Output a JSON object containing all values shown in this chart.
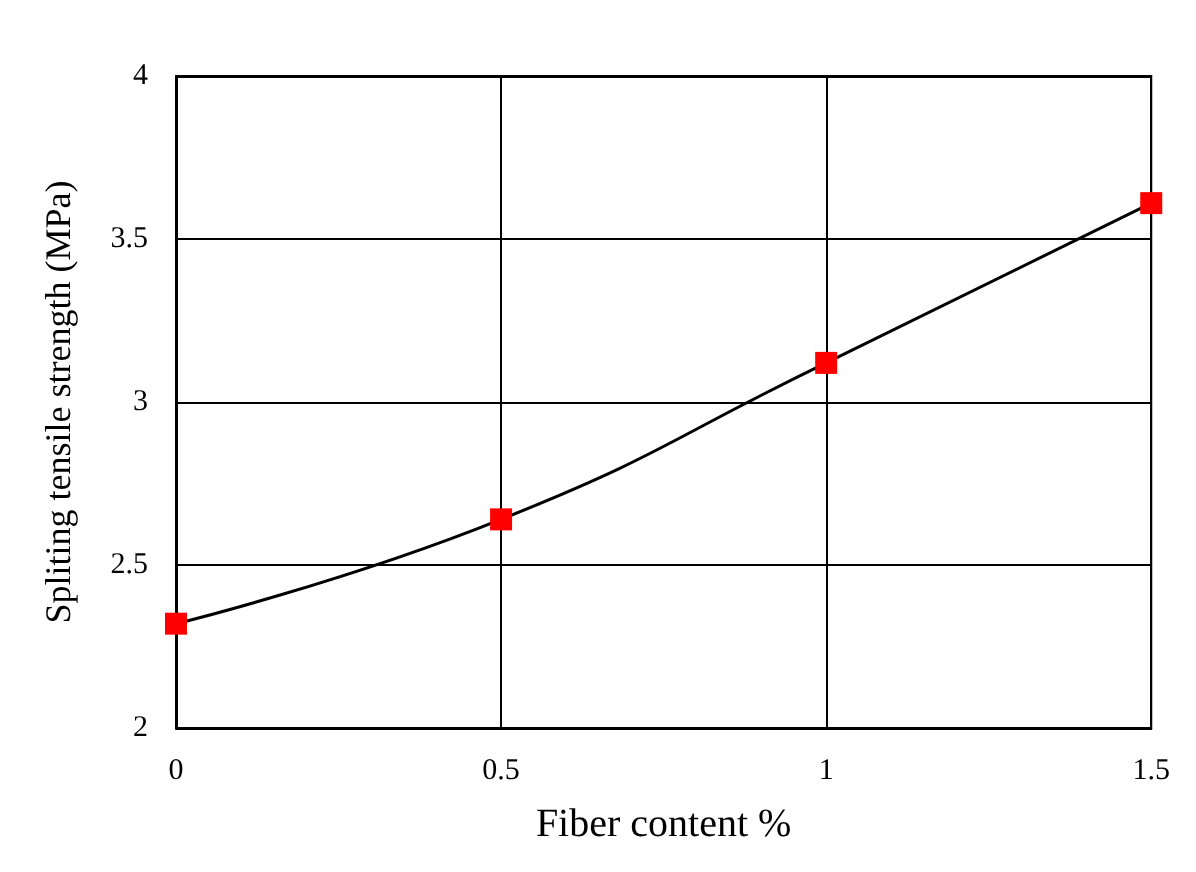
{
  "chart_data": {
    "type": "line",
    "xlabel": "Fiber content %",
    "ylabel": "Spliting tensile strength (MPa)",
    "x": [
      0,
      0.5,
      1,
      1.5
    ],
    "series": [
      {
        "color": "#000000",
        "colors": [
          "#ff0000",
          "#ff0000",
          "#ff0000",
          "#ff0000"
        ],
        "values": [
          2.32,
          2.64,
          3.12,
          3.61
        ]
      }
    ],
    "xlim": [
      0,
      1.5
    ],
    "xticks": [
      0,
      0.5,
      1,
      1.5
    ],
    "ylim": [
      2,
      4
    ],
    "yticks": [
      2,
      2.5,
      3,
      3.5,
      4
    ],
    "grid": true,
    "marker": "square",
    "line_style": "solid"
  }
}
